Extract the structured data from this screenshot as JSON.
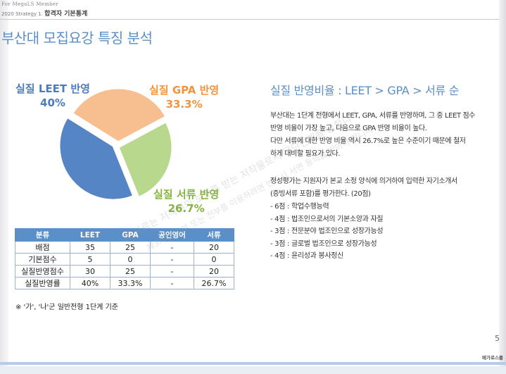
{
  "header": {
    "brand": "For MegaLS  Member",
    "breadcrumb_prefix": "2020 Strategy 1.",
    "breadcrumb_section": "합격자 기본통계"
  },
  "page_title": "부산대 모집요강 특징 분석",
  "chart_data": {
    "type": "pie",
    "title": "",
    "slices": [
      {
        "name": "실질 LEET 반영",
        "value": 40,
        "label": "40%",
        "color": "#5585c5"
      },
      {
        "name": "실질 GPA 반영",
        "value": 33.3,
        "label": "33.3%",
        "color": "#f7bf8f"
      },
      {
        "name": "실질 서류 반영",
        "value": 26.7,
        "label": "26.7%",
        "color": "#b8d88e"
      }
    ],
    "legend": "labels-outside"
  },
  "table": {
    "headers": [
      "분류",
      "LEET",
      "GPA",
      "공인영어",
      "서류"
    ],
    "rows": [
      [
        "배점",
        "35",
        "25",
        "-",
        "20"
      ],
      [
        "기본점수",
        "5",
        "0",
        "-",
        "0"
      ],
      [
        "실질반영점수",
        "30",
        "25",
        "-",
        "20"
      ],
      [
        "실질반영률",
        "40%",
        "33.3%",
        "-",
        "26.7%"
      ]
    ]
  },
  "footnote": "※ '가', '나'군 일반전형 1단계 기준",
  "right": {
    "heading": "실질 반영비율 : LEET > GPA > 서류 순",
    "para1_line1": "부산대는 1단계 전형에서 LEET, GPA, 서류를 반영하며, 그 중 LEET 점수",
    "para1_line2": "반영 비율이 가장 높고, 다음으로 GPA 반영 비율이 높다.",
    "para2_line1": "다만 서류에 대한 반영 비율 역시 26.7%로 높은 수준이기 때문에 철저",
    "para2_line2": "하게 대비할 필요가 있다.",
    "para3_line1": "정성평가는 지원자가 본교 소정 양식에 의거하여 입력한 자기소개서",
    "para3_line2": "(증빙서류 포함)를 평가한다. (20점)",
    "list": [
      "- 6점 : 학업수행능력",
      "- 4점 : 법조인으로서의 기본소양과 자질",
      "- 3점 : 전문분야 법조인으로 성장가능성",
      "- 3점 : 글로벌 법조인으로 성장가능성",
      "- 4점 : 윤리성과 봉사정신"
    ]
  },
  "watermark": "본 자료는 저작권의 보호를 받는 저작물로서 무단전재를 금합니다",
  "watermark2": "제3자의 일부 또는 전부를 이용하려면 반드시 서면 동의를 받아야 합니다",
  "page_number": "5",
  "footer_label": "메가로스쿨"
}
